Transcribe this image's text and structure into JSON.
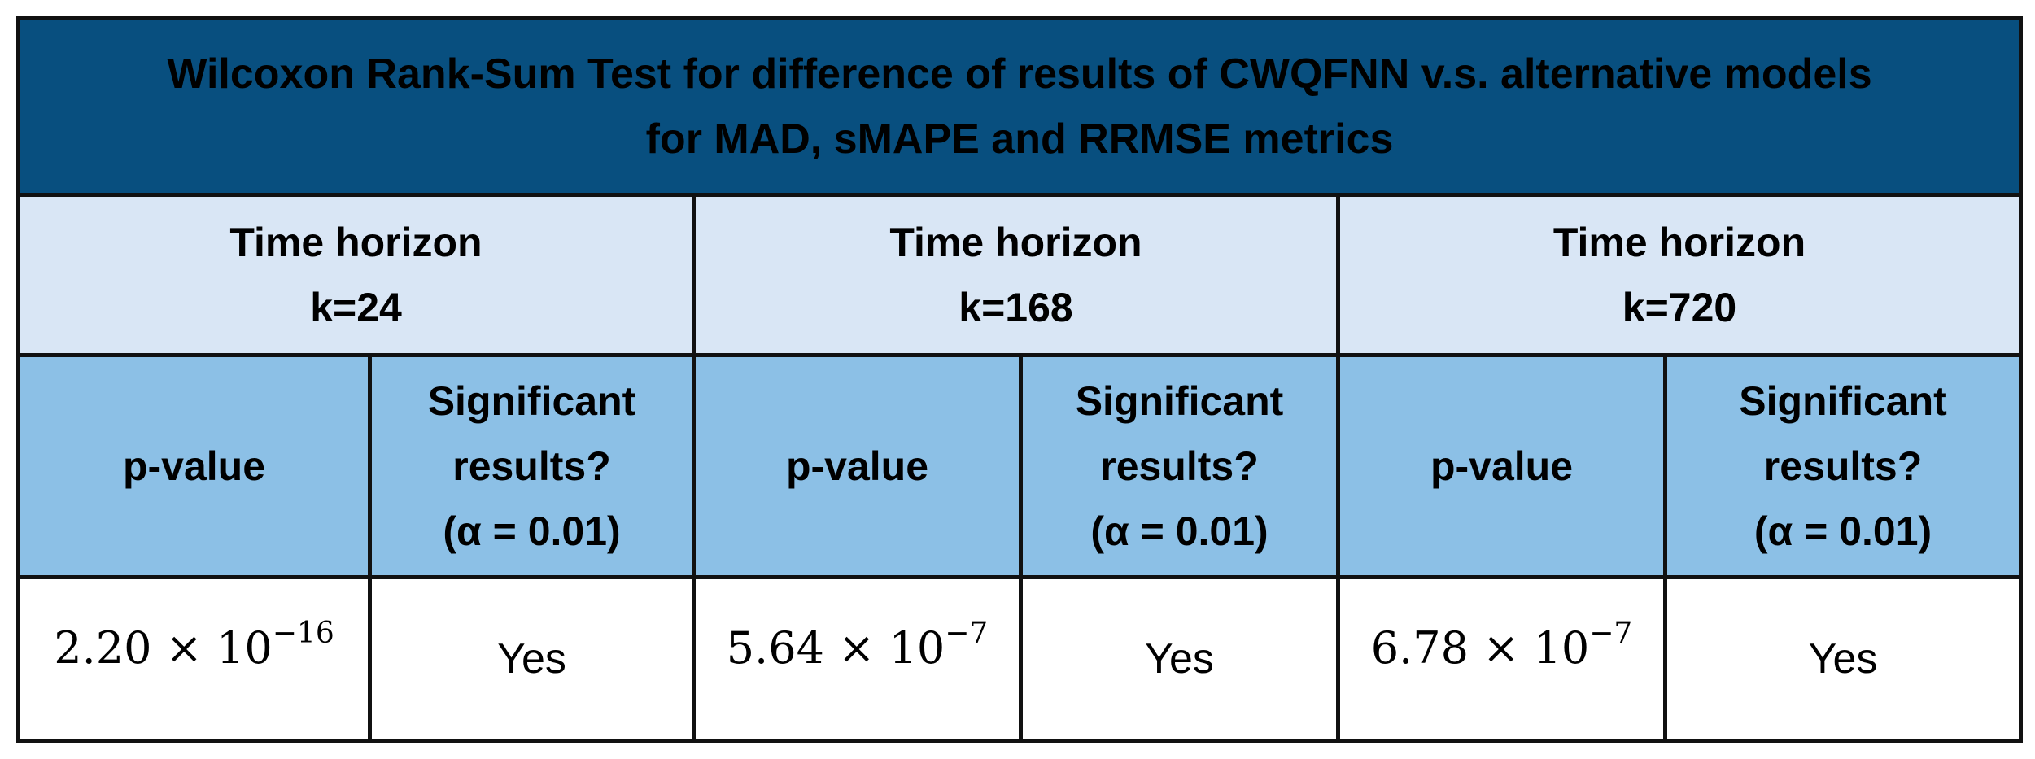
{
  "title": {
    "line1": "Wilcoxon Rank-Sum Test for difference of results of CWQFNN v.s. alternative models",
    "line2": "for MAD, sMAPE and RRMSE metrics"
  },
  "horizons": [
    {
      "label": "Time horizon",
      "k": "k=24",
      "pvalue_header": "p-value",
      "sig_header_line1": "Significant",
      "sig_header_line2": "results?",
      "sig_header_line3": "(α = 0.01)",
      "pvalue_mantissa": "2.20 × 10",
      "pvalue_exponent": "−16",
      "significant": "Yes"
    },
    {
      "label": "Time horizon",
      "k": "k=168",
      "pvalue_header": "p-value",
      "sig_header_line1": "Significant",
      "sig_header_line2": "results?",
      "sig_header_line3": "(α = 0.01)",
      "pvalue_mantissa": "5.64 × 10",
      "pvalue_exponent": "−7",
      "significant": "Yes"
    },
    {
      "label": "Time horizon",
      "k": "k=720",
      "pvalue_header": "p-value",
      "sig_header_line1": "Significant",
      "sig_header_line2": "results?",
      "sig_header_line3": "(α = 0.01)",
      "pvalue_mantissa": "6.78 × 10",
      "pvalue_exponent": "−7",
      "significant": "Yes"
    }
  ],
  "colors": {
    "title_bg": "#084f7f",
    "horizon_bg": "#d9e6f5",
    "header_bg": "#8cc0e6",
    "value_bg": "#ffffff",
    "border": "#111111"
  }
}
